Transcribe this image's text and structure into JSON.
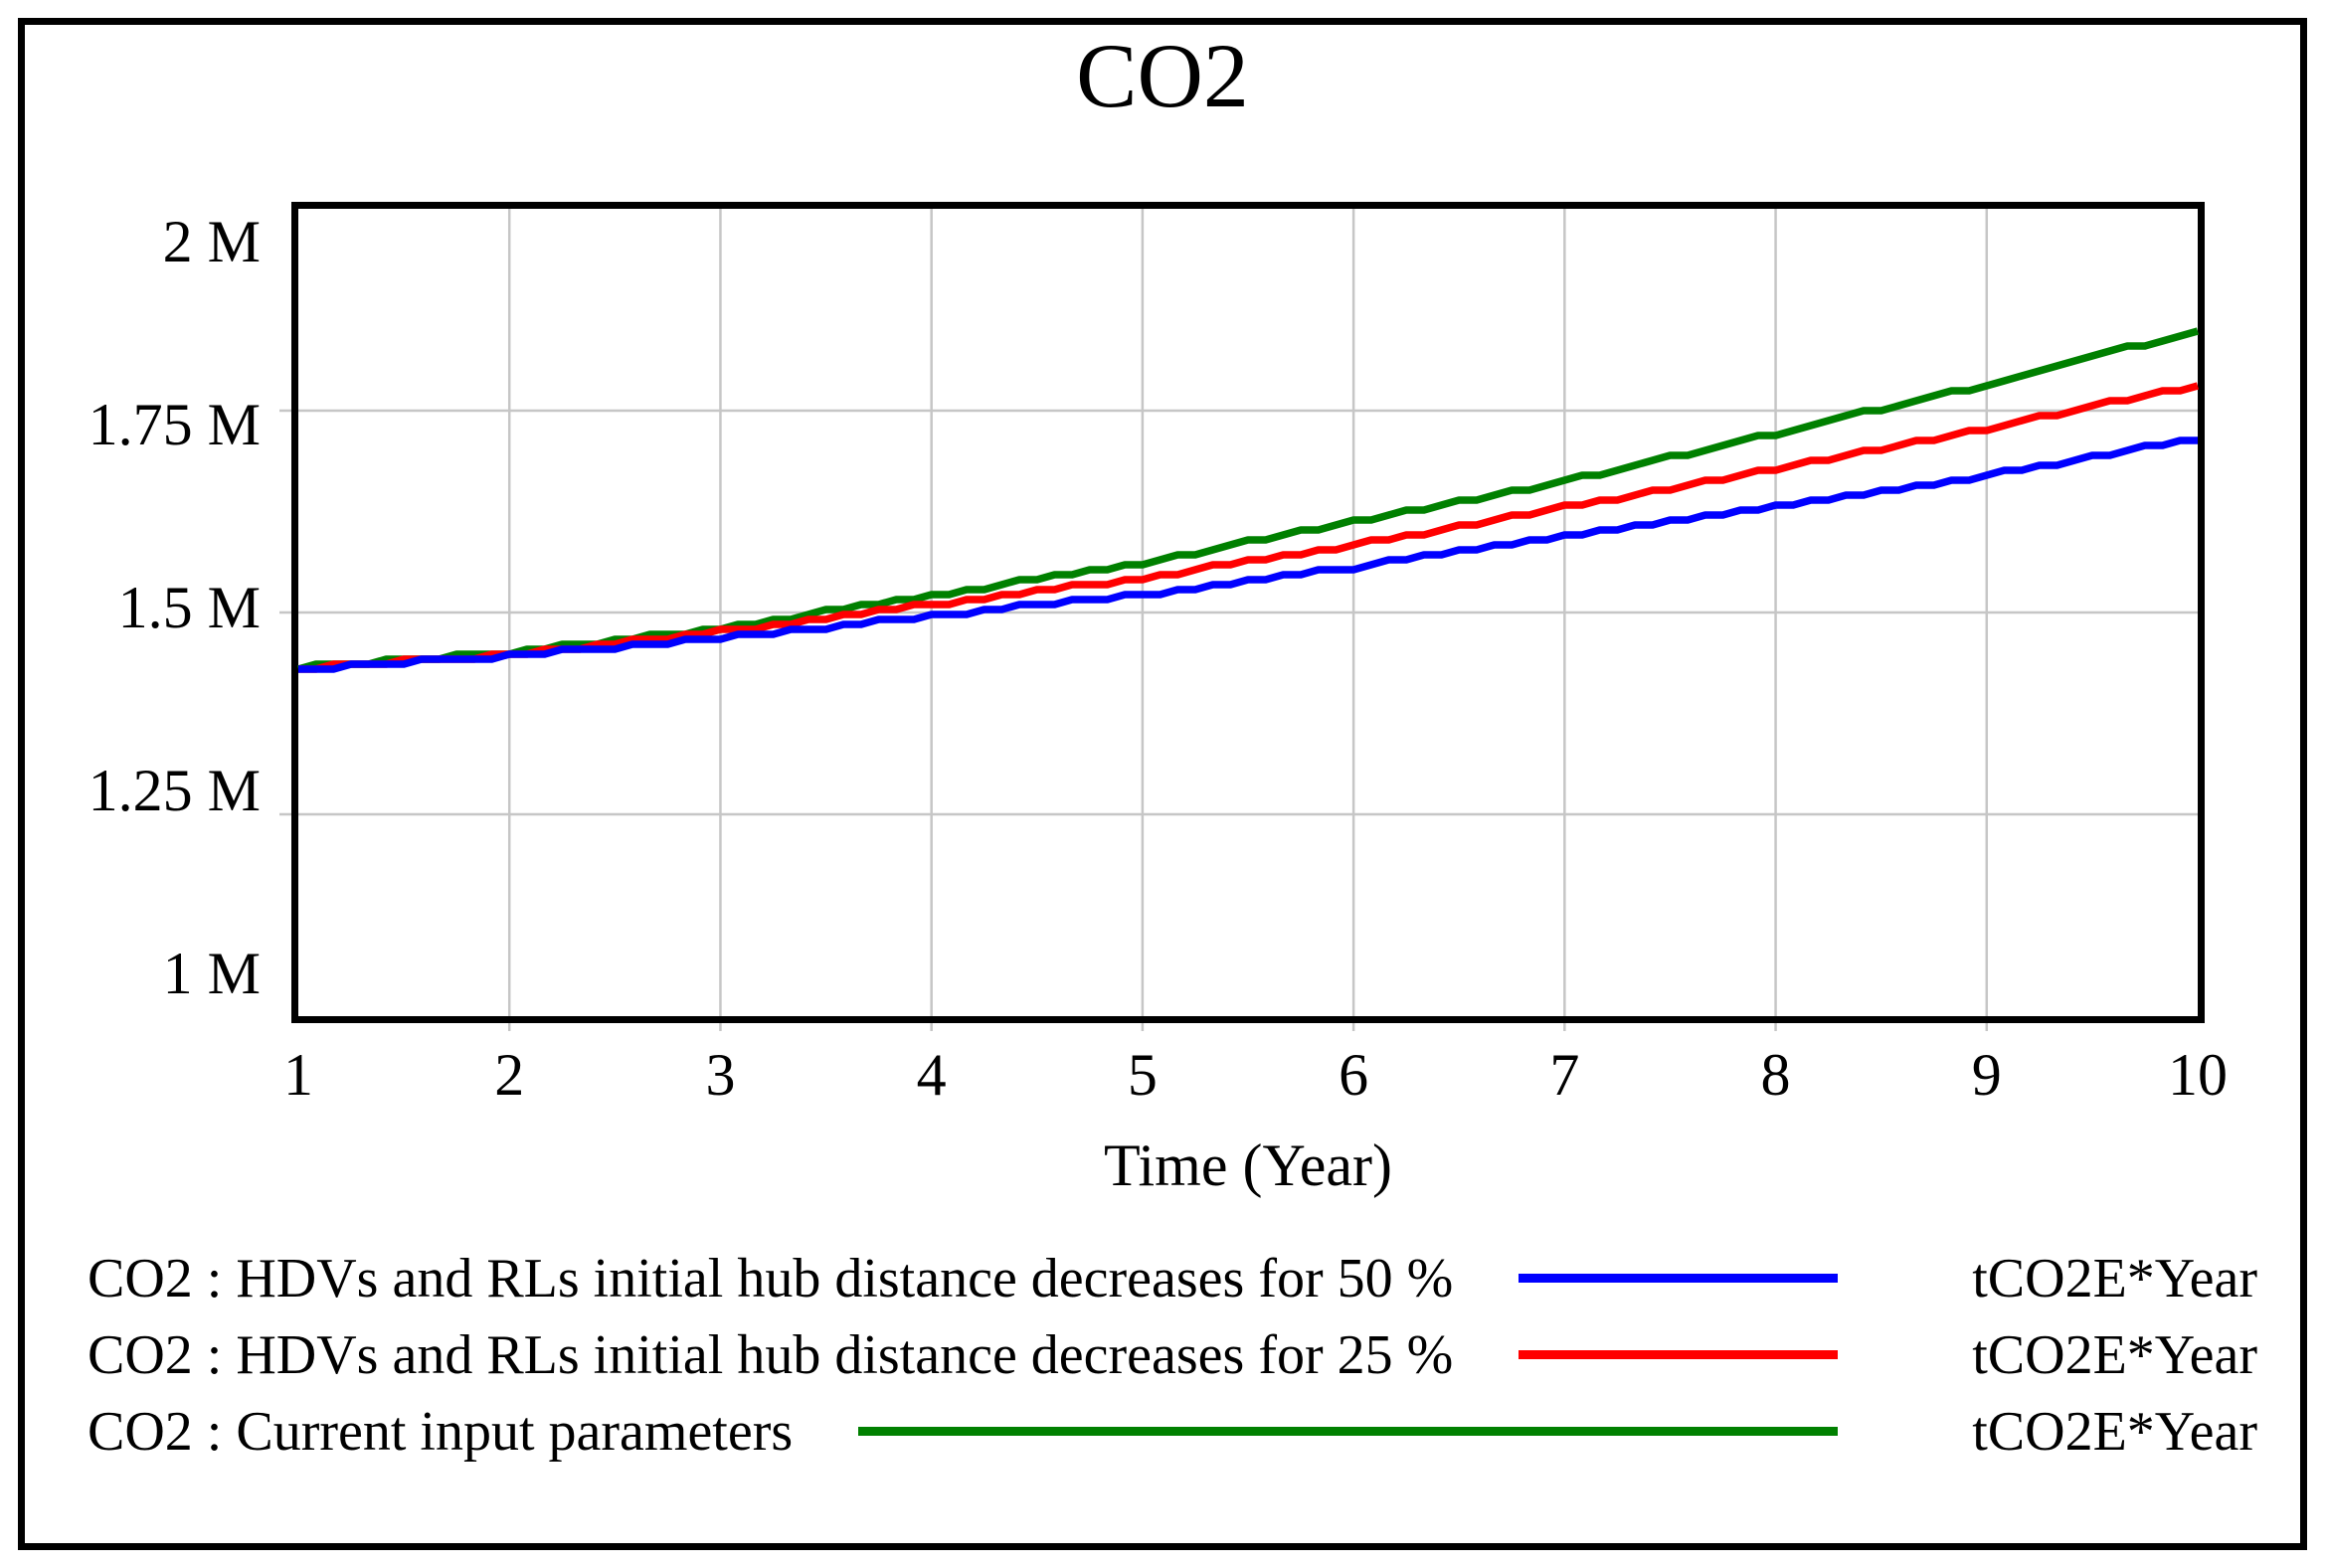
{
  "page": {
    "title": "CO2"
  },
  "axes": {
    "x_label": "Time (Year)",
    "x_ticks": [
      "1",
      "2",
      "3",
      "4",
      "5",
      "6",
      "7",
      "8",
      "9",
      "10"
    ],
    "y_ticks": [
      "2 M",
      "1.75 M",
      "1.5 M",
      "1.25 M",
      "1 M"
    ]
  },
  "colors": {
    "grid": "#c6c6c6",
    "border": "#000000",
    "series_blue": "#0000ff",
    "series_red": "#ff0000",
    "series_green": "#008000"
  },
  "legend": [
    {
      "label": "CO2 : HDVs and RLs initial hub distance decreases for 50 %",
      "unit": "tCO2E*Year",
      "color": "#0000ff"
    },
    {
      "label": "CO2 : HDVs and RLs initial hub distance decreases for 25 %",
      "unit": "tCO2E*Year",
      "color": "#ff0000"
    },
    {
      "label": "CO2 : Current input parameters",
      "unit": "tCO2E*Year",
      "color": "#008000"
    }
  ],
  "chart_data": {
    "type": "line",
    "title": "CO2",
    "xlabel": "Time (Year)",
    "ylabel": "tCO2E*Year",
    "x": [
      1,
      2,
      3,
      4,
      5,
      6,
      7,
      8,
      9,
      10
    ],
    "xlim": [
      1,
      10
    ],
    "ylim": [
      1000000,
      2000000
    ],
    "y_tick_values": [
      1000000,
      1250000,
      1500000,
      1750000,
      2000000
    ],
    "grid": true,
    "legend_position": "bottom",
    "series": [
      {
        "name": "CO2 : HDVs and RLs initial hub distance decreases for 50 %",
        "color": "#0000ff",
        "values": [
          1430000,
          1446000,
          1468000,
          1496000,
          1522000,
          1556000,
          1594000,
          1631000,
          1670000,
          1716000
        ]
      },
      {
        "name": "CO2 : HDVs and RLs initial hub distance decreases for 25 %",
        "color": "#ff0000",
        "values": [
          1431000,
          1448000,
          1476000,
          1510000,
          1543000,
          1583000,
          1630000,
          1678000,
          1728000,
          1782000
        ]
      },
      {
        "name": "CO2 : Current input parameters",
        "color": "#008000",
        "values": [
          1432000,
          1450000,
          1481000,
          1521000,
          1562000,
          1612000,
          1663000,
          1722000,
          1782000,
          1850000
        ]
      }
    ]
  }
}
